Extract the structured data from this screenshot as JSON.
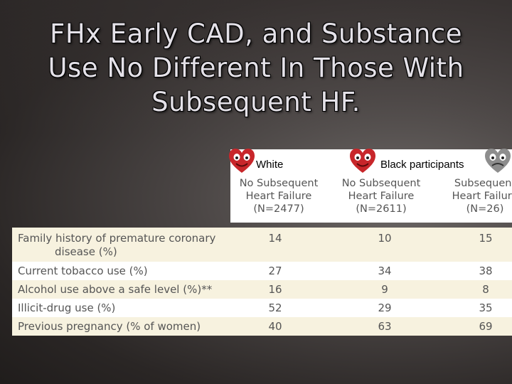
{
  "slide": {
    "title_lines": [
      "FHx Early CAD, and Substance",
      "Use No Different In Those With",
      "Subsequent HF."
    ]
  },
  "header": {
    "group_white": "White",
    "group_black": "Black participants",
    "columns": [
      {
        "line1": "No Subsequent",
        "line2": "Heart Failure",
        "line3": "(N=2477)"
      },
      {
        "line1": "No Subsequent",
        "line2": "Heart Failure",
        "line3": "(N=2611)"
      },
      {
        "line1": "Subsequent",
        "line2": "Heart Failure",
        "line3": "(N=26)"
      }
    ]
  },
  "table": {
    "rows": [
      {
        "label_line1": "Family history of premature coronary",
        "label_line2": "disease (%)",
        "values": [
          "14",
          "10",
          "15"
        ]
      },
      {
        "label_line1": "Current tobacco use (%)",
        "values": [
          "27",
          "34",
          "38"
        ]
      },
      {
        "label_line1": "Alcohol use above a safe level (%)**",
        "values": [
          "16",
          "9",
          "8"
        ]
      },
      {
        "label_line1": "Illicit-drug use (%)",
        "values": [
          "52",
          "29",
          "35"
        ]
      },
      {
        "label_line1": "Previous pregnancy (% of women)",
        "values": [
          "40",
          "63",
          "69"
        ]
      }
    ]
  },
  "icons": [
    "heart-face-emoji-red",
    "heart-face-emoji-red",
    "heart-face-emoji-gray"
  ],
  "colors": {
    "emoji_red": "#c8262a",
    "emoji_gray": "#8d8d8d",
    "row_shade": "#f7f2df"
  }
}
